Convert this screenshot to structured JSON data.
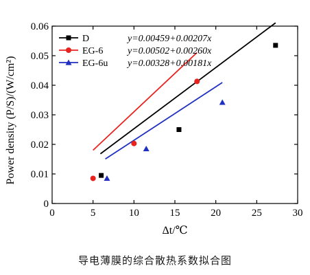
{
  "chart_data": {
    "type": "scatter",
    "xlabel": "Δt/℃",
    "ylabel": "Power density  (P/S)/(W/cm²)",
    "xlim": [
      0,
      30
    ],
    "ylim": [
      0,
      0.06
    ],
    "x_ticks": [
      "0",
      "5",
      "10",
      "15",
      "20",
      "25",
      "30"
    ],
    "y_ticks": [
      "0",
      "0.01",
      "0.02",
      "0.03",
      "0.04",
      "0.05",
      "0.06"
    ],
    "grid": false,
    "legend_position": "top-left",
    "series": [
      {
        "name": "D",
        "marker": "square",
        "color": "#000000",
        "equation": "y=0.00459+0.00207x",
        "points": [
          [
            6.0,
            0.0095
          ],
          [
            15.5,
            0.025
          ],
          [
            27.3,
            0.0535
          ]
        ],
        "fit_x": [
          5.9,
          27.3
        ]
      },
      {
        "name": "EG-6",
        "marker": "circle",
        "color": "#e8231f",
        "equation": "y=0.00502+0.00260x",
        "points": [
          [
            5.0,
            0.0085
          ],
          [
            10.0,
            0.0203
          ],
          [
            17.7,
            0.0413
          ]
        ],
        "fit_x": [
          5.0,
          17.7
        ]
      },
      {
        "name": "EG-6u",
        "marker": "triangle",
        "color": "#1f2fc0",
        "equation": "y=0.00328+0.00181x",
        "points": [
          [
            6.7,
            0.0085
          ],
          [
            11.5,
            0.0185
          ],
          [
            20.8,
            0.0342
          ]
        ],
        "fit_x": [
          6.5,
          20.8
        ]
      }
    ]
  },
  "caption": "导电薄膜的综合散热系数拟合图"
}
